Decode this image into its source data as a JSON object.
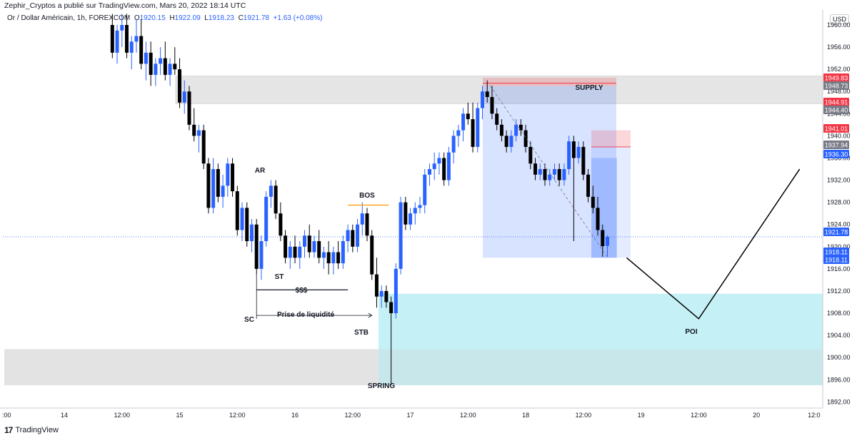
{
  "header": {
    "publisher_line": "Zephir_Cryptos a publié sur TradingView.com, Mars 20, 2022 18:14 UTC",
    "instrument": "Or / Dollar Américain, 1h, FOREXCOM",
    "ohlc": {
      "o_label": "O",
      "o": "1920.15",
      "h_label": "H",
      "h": "1922.09",
      "l_label": "L",
      "l": "1918.23",
      "c_label": "C",
      "c": "1921.78",
      "change": "+1.63 (+0.08%)"
    },
    "currency": "USD"
  },
  "footer": {
    "logo_glyph": "17",
    "brand": "TradingView"
  },
  "colors": {
    "up": "#2962ff",
    "down": "#000000",
    "supply": "#e5e5e5",
    "poi": "#b2ebf2",
    "tag_red": "#f23645",
    "tag_gray": "#787b86",
    "tag_blue": "#2962ff",
    "bos": "#ff9800"
  },
  "chart_data": {
    "type": "candlestick",
    "symbol": "XAUUSD",
    "timeframe": "1h",
    "ylim": [
      1889.5,
      1962.5
    ],
    "y_ticks": [
      "1960.00",
      "1956.00",
      "1952.00",
      "1948.00",
      "1944.00",
      "1940.00",
      "1936.00",
      "1932.00",
      "1928.00",
      "1924.00",
      "1920.00",
      "1916.00",
      "1912.00",
      "1908.00",
      "1904.00",
      "1900.00",
      "1896.00",
      "1892.00"
    ],
    "x_ticks": [
      {
        "label": ":00",
        "t": -12
      },
      {
        "label": "14",
        "t": 0
      },
      {
        "label": "12:00",
        "t": 12
      },
      {
        "label": "15",
        "t": 24
      },
      {
        "label": "12:00",
        "t": 36
      },
      {
        "label": "16",
        "t": 48
      },
      {
        "label": "12:00",
        "t": 60
      },
      {
        "label": "17",
        "t": 72
      },
      {
        "label": "12:00",
        "t": 84
      },
      {
        "label": "18",
        "t": 96
      },
      {
        "label": "12:00",
        "t": 108
      },
      {
        "label": "19",
        "t": 120
      },
      {
        "label": "12:00",
        "t": 132
      },
      {
        "label": "20",
        "t": 144
      },
      {
        "label": "12:0",
        "t": 156
      }
    ],
    "candles": [
      {
        "t": 10,
        "o": 1960,
        "h": 1962,
        "l": 1954,
        "c": 1955
      },
      {
        "t": 11,
        "o": 1955,
        "h": 1960,
        "l": 1953,
        "c": 1959
      },
      {
        "t": 12,
        "o": 1959,
        "h": 1962,
        "l": 1956,
        "c": 1960
      },
      {
        "t": 13,
        "o": 1960,
        "h": 1962,
        "l": 1954,
        "c": 1955
      },
      {
        "t": 14,
        "o": 1955,
        "h": 1958,
        "l": 1952,
        "c": 1957
      },
      {
        "t": 15,
        "o": 1957,
        "h": 1961,
        "l": 1955,
        "c": 1958
      },
      {
        "t": 16,
        "o": 1958,
        "h": 1961,
        "l": 1952,
        "c": 1953
      },
      {
        "t": 17,
        "o": 1953,
        "h": 1957,
        "l": 1950,
        "c": 1955
      },
      {
        "t": 18,
        "o": 1955,
        "h": 1957,
        "l": 1949,
        "c": 1951
      },
      {
        "t": 19,
        "o": 1951,
        "h": 1954,
        "l": 1949,
        "c": 1953
      },
      {
        "t": 20,
        "o": 1953,
        "h": 1956,
        "l": 1951,
        "c": 1954
      },
      {
        "t": 21,
        "o": 1954,
        "h": 1957,
        "l": 1950,
        "c": 1951
      },
      {
        "t": 22,
        "o": 1951,
        "h": 1954,
        "l": 1949,
        "c": 1953
      },
      {
        "t": 23,
        "o": 1953,
        "h": 1956,
        "l": 1951,
        "c": 1952
      },
      {
        "t": 24,
        "o": 1952,
        "h": 1954,
        "l": 1945,
        "c": 1946
      },
      {
        "t": 25,
        "o": 1946,
        "h": 1950,
        "l": 1944,
        "c": 1948
      },
      {
        "t": 26,
        "o": 1948,
        "h": 1949,
        "l": 1941,
        "c": 1942
      },
      {
        "t": 27,
        "o": 1942,
        "h": 1945,
        "l": 1939,
        "c": 1940
      },
      {
        "t": 28,
        "o": 1940,
        "h": 1942,
        "l": 1937,
        "c": 1941
      },
      {
        "t": 29,
        "o": 1941,
        "h": 1942,
        "l": 1934,
        "c": 1935
      },
      {
        "t": 30,
        "o": 1935,
        "h": 1936,
        "l": 1926,
        "c": 1927
      },
      {
        "t": 31,
        "o": 1927,
        "h": 1936,
        "l": 1926,
        "c": 1934
      },
      {
        "t": 32,
        "o": 1934,
        "h": 1935,
        "l": 1928,
        "c": 1929
      },
      {
        "t": 33,
        "o": 1929,
        "h": 1933,
        "l": 1927,
        "c": 1931
      },
      {
        "t": 34,
        "o": 1931,
        "h": 1936,
        "l": 1929,
        "c": 1935
      },
      {
        "t": 35,
        "o": 1935,
        "h": 1936,
        "l": 1929,
        "c": 1930
      },
      {
        "t": 36,
        "o": 1930,
        "h": 1931,
        "l": 1922,
        "c": 1923
      },
      {
        "t": 37,
        "o": 1923,
        "h": 1928,
        "l": 1921,
        "c": 1927
      },
      {
        "t": 38,
        "o": 1927,
        "h": 1928,
        "l": 1920,
        "c": 1921
      },
      {
        "t": 39,
        "o": 1921,
        "h": 1925,
        "l": 1919,
        "c": 1924
      },
      {
        "t": 40,
        "o": 1924,
        "h": 1925,
        "l": 1915,
        "c": 1916
      },
      {
        "t": 41,
        "o": 1916,
        "h": 1922,
        "l": 1914,
        "c": 1921
      },
      {
        "t": 42,
        "o": 1921,
        "h": 1930,
        "l": 1920,
        "c": 1929
      },
      {
        "t": 43,
        "o": 1929,
        "h": 1932,
        "l": 1927,
        "c": 1931
      },
      {
        "t": 44,
        "o": 1931,
        "h": 1932,
        "l": 1925,
        "c": 1926
      },
      {
        "t": 45,
        "o": 1926,
        "h": 1928,
        "l": 1921,
        "c": 1922
      },
      {
        "t": 46,
        "o": 1922,
        "h": 1923,
        "l": 1917,
        "c": 1918
      },
      {
        "t": 47,
        "o": 1918,
        "h": 1921,
        "l": 1916,
        "c": 1920
      },
      {
        "t": 48,
        "o": 1920,
        "h": 1922,
        "l": 1917,
        "c": 1918
      },
      {
        "t": 49,
        "o": 1918,
        "h": 1921,
        "l": 1916,
        "c": 1920
      },
      {
        "t": 50,
        "o": 1920,
        "h": 1923,
        "l": 1918,
        "c": 1922
      },
      {
        "t": 51,
        "o": 1922,
        "h": 1924,
        "l": 1918,
        "c": 1919
      },
      {
        "t": 52,
        "o": 1919,
        "h": 1922,
        "l": 1918,
        "c": 1921
      },
      {
        "t": 53,
        "o": 1921,
        "h": 1923,
        "l": 1917,
        "c": 1918
      },
      {
        "t": 54,
        "o": 1918,
        "h": 1920,
        "l": 1916,
        "c": 1919
      },
      {
        "t": 55,
        "o": 1919,
        "h": 1921,
        "l": 1915,
        "c": 1917
      },
      {
        "t": 56,
        "o": 1917,
        "h": 1920,
        "l": 1915,
        "c": 1919
      },
      {
        "t": 57,
        "o": 1919,
        "h": 1921,
        "l": 1916,
        "c": 1917
      },
      {
        "t": 58,
        "o": 1917,
        "h": 1922,
        "l": 1916,
        "c": 1921
      },
      {
        "t": 59,
        "o": 1921,
        "h": 1924,
        "l": 1919,
        "c": 1923
      },
      {
        "t": 60,
        "o": 1923,
        "h": 1924,
        "l": 1919,
        "c": 1920
      },
      {
        "t": 61,
        "o": 1920,
        "h": 1925,
        "l": 1919,
        "c": 1924
      },
      {
        "t": 62,
        "o": 1924,
        "h": 1928,
        "l": 1922,
        "c": 1926
      },
      {
        "t": 63,
        "o": 1926,
        "h": 1927,
        "l": 1921,
        "c": 1922
      },
      {
        "t": 64,
        "o": 1922,
        "h": 1923,
        "l": 1914,
        "c": 1915
      },
      {
        "t": 65,
        "o": 1915,
        "h": 1918,
        "l": 1909,
        "c": 1911
      },
      {
        "t": 66,
        "o": 1911,
        "h": 1913,
        "l": 1909,
        "c": 1912
      },
      {
        "t": 67,
        "o": 1912,
        "h": 1913,
        "l": 1909,
        "c": 1910
      },
      {
        "t": 68,
        "o": 1910,
        "h": 1911,
        "l": 1895,
        "c": 1908
      },
      {
        "t": 69,
        "o": 1908,
        "h": 1917,
        "l": 1907,
        "c": 1916
      },
      {
        "t": 70,
        "o": 1916,
        "h": 1929,
        "l": 1915,
        "c": 1928
      },
      {
        "t": 71,
        "o": 1928,
        "h": 1929,
        "l": 1923,
        "c": 1924
      },
      {
        "t": 72,
        "o": 1924,
        "h": 1927,
        "l": 1923,
        "c": 1926
      },
      {
        "t": 73,
        "o": 1926,
        "h": 1928,
        "l": 1924,
        "c": 1927
      },
      {
        "t": 74,
        "o": 1927,
        "h": 1929,
        "l": 1926,
        "c": 1927.5
      },
      {
        "t": 75,
        "o": 1927.5,
        "h": 1934,
        "l": 1926,
        "c": 1933
      },
      {
        "t": 76,
        "o": 1933,
        "h": 1935,
        "l": 1931,
        "c": 1934
      },
      {
        "t": 77,
        "o": 1934,
        "h": 1937,
        "l": 1932,
        "c": 1935
      },
      {
        "t": 78,
        "o": 1935,
        "h": 1937,
        "l": 1933,
        "c": 1936
      },
      {
        "t": 79,
        "o": 1936,
        "h": 1937,
        "l": 1931,
        "c": 1932
      },
      {
        "t": 80,
        "o": 1932,
        "h": 1938,
        "l": 1931,
        "c": 1937
      },
      {
        "t": 81,
        "o": 1937,
        "h": 1941,
        "l": 1935,
        "c": 1940
      },
      {
        "t": 82,
        "o": 1940,
        "h": 1942,
        "l": 1938,
        "c": 1941
      },
      {
        "t": 83,
        "o": 1941,
        "h": 1945,
        "l": 1939,
        "c": 1944
      },
      {
        "t": 84,
        "o": 1944,
        "h": 1946,
        "l": 1942,
        "c": 1943
      },
      {
        "t": 85,
        "o": 1943,
        "h": 1946,
        "l": 1937,
        "c": 1938
      },
      {
        "t": 86,
        "o": 1938,
        "h": 1946,
        "l": 1937,
        "c": 1945
      },
      {
        "t": 87,
        "o": 1945,
        "h": 1949,
        "l": 1943,
        "c": 1948
      },
      {
        "t": 88,
        "o": 1948,
        "h": 1950,
        "l": 1946,
        "c": 1947
      },
      {
        "t": 89,
        "o": 1947,
        "h": 1949,
        "l": 1943,
        "c": 1944
      },
      {
        "t": 90,
        "o": 1944,
        "h": 1945,
        "l": 1941,
        "c": 1942
      },
      {
        "t": 91,
        "o": 1942,
        "h": 1943,
        "l": 1939,
        "c": 1940
      },
      {
        "t": 92,
        "o": 1940,
        "h": 1941,
        "l": 1937,
        "c": 1938
      },
      {
        "t": 93,
        "o": 1938,
        "h": 1941,
        "l": 1937,
        "c": 1940
      },
      {
        "t": 94,
        "o": 1940,
        "h": 1943,
        "l": 1939,
        "c": 1942
      },
      {
        "t": 95,
        "o": 1942,
        "h": 1943,
        "l": 1940,
        "c": 1941
      },
      {
        "t": 96,
        "o": 1941,
        "h": 1942,
        "l": 1937,
        "c": 1938
      },
      {
        "t": 97,
        "o": 1938,
        "h": 1939,
        "l": 1934,
        "c": 1935
      },
      {
        "t": 98,
        "o": 1935,
        "h": 1936,
        "l": 1932,
        "c": 1933
      },
      {
        "t": 99,
        "o": 1933,
        "h": 1935,
        "l": 1932,
        "c": 1934
      },
      {
        "t": 100,
        "o": 1934,
        "h": 1935,
        "l": 1931,
        "c": 1932
      },
      {
        "t": 101,
        "o": 1932,
        "h": 1934,
        "l": 1931,
        "c": 1933
      },
      {
        "t": 102,
        "o": 1933,
        "h": 1935,
        "l": 1932,
        "c": 1934
      },
      {
        "t": 103,
        "o": 1934,
        "h": 1935,
        "l": 1931,
        "c": 1932
      },
      {
        "t": 104,
        "o": 1932,
        "h": 1935,
        "l": 1931,
        "c": 1934
      },
      {
        "t": 105,
        "o": 1934,
        "h": 1940,
        "l": 1933,
        "c": 1939
      },
      {
        "t": 106,
        "o": 1939,
        "h": 1940,
        "l": 1921,
        "c": 1936
      },
      {
        "t": 107,
        "o": 1936,
        "h": 1939,
        "l": 1935,
        "c": 1938
      },
      {
        "t": 108,
        "o": 1938,
        "h": 1939,
        "l": 1932,
        "c": 1933
      },
      {
        "t": 109,
        "o": 1933,
        "h": 1934,
        "l": 1928,
        "c": 1929
      },
      {
        "t": 110,
        "o": 1929,
        "h": 1931,
        "l": 1926,
        "c": 1927
      },
      {
        "t": 111,
        "o": 1927,
        "h": 1929,
        "l": 1922,
        "c": 1923
      },
      {
        "t": 112,
        "o": 1923,
        "h": 1924,
        "l": 1918.2,
        "c": 1920.1
      },
      {
        "t": 113,
        "o": 1920.15,
        "h": 1922.09,
        "l": 1918.23,
        "c": 1921.78
      }
    ],
    "zones": [
      {
        "label": "SUPPLY",
        "y0": 1945.8,
        "y1": 1950.8
      },
      {
        "label": "POI",
        "y0": 1901.5,
        "y1": 1911.5
      },
      {
        "label": "",
        "y0": 1895.0,
        "y1": 1901.5
      }
    ],
    "annotations": [
      {
        "text": "AR",
        "t": 42,
        "price": 1933.5
      },
      {
        "text": "ST",
        "t": 47,
        "price": 1915
      },
      {
        "text": "$$$",
        "t": 51,
        "price": 1911.5
      },
      {
        "text": "Prise de liquidité",
        "t": 51.5,
        "price": 1906.8
      },
      {
        "text": "SC",
        "t": 40,
        "price": 1905.5
      },
      {
        "text": "STB",
        "t": 64,
        "price": 1902.5
      },
      {
        "text": "BOS",
        "t": 65,
        "price": 1929
      },
      {
        "text": "SPRING",
        "t": 68,
        "price": 1893
      },
      {
        "text": "SUPPLY",
        "t": 105,
        "price": 1948.7
      },
      {
        "text": "POI",
        "t": 125,
        "price": 1902.8
      }
    ],
    "price_tags": [
      {
        "value": "1949.83",
        "price": 1949.83,
        "color": "red"
      },
      {
        "value": "1948.73",
        "price": 1948.73,
        "color": "gray"
      },
      {
        "value": "1944.91",
        "price": 1944.91,
        "color": "red"
      },
      {
        "value": "1944.40",
        "price": 1944.4,
        "color": "gray"
      },
      {
        "value": "1941.01",
        "price": 1941.01,
        "color": "red"
      },
      {
        "value": "1937.94",
        "price": 1937.94,
        "color": "gray"
      },
      {
        "value": "1936.30",
        "price": 1936.3,
        "color": "blue"
      },
      {
        "value": "1921.78",
        "price": 1921.78,
        "color": "blue"
      },
      {
        "value": "1918.11",
        "price": 1918.11,
        "color": "blue"
      },
      {
        "value": "1918.11",
        "price": 1918.11,
        "color": "blue"
      }
    ],
    "projection": [
      {
        "t": 117,
        "price": 1918
      },
      {
        "t": 132,
        "price": 1907
      },
      {
        "t": 153,
        "price": 1934
      }
    ]
  }
}
